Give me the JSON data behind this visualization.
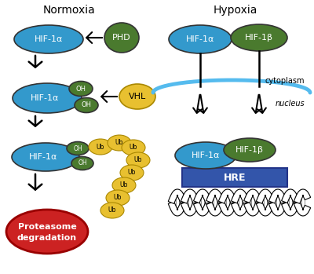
{
  "title_normoxia": "Normoxia",
  "title_hypoxia": "Hypoxia",
  "blue_color": "#3399CC",
  "green_dark_color": "#4A7A2E",
  "yellow_color": "#E8C030",
  "red_color": "#CC2222",
  "hre_blue": "#3355AA",
  "membrane_color": "#55BBEE",
  "bg_color": "#FFFFFF",
  "cytoplasm_label": "cytoplasm",
  "nucleus_label": "nucleus"
}
